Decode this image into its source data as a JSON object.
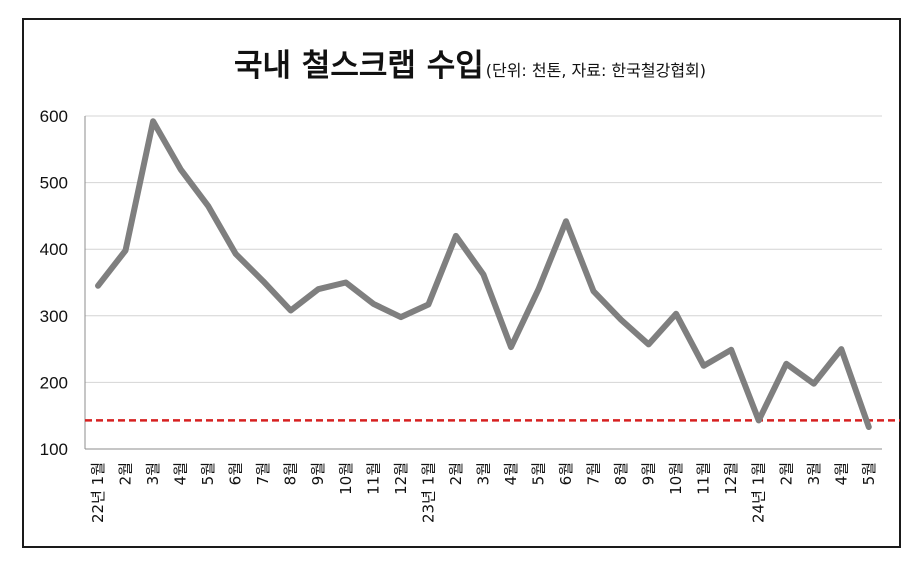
{
  "chart_data": {
    "type": "line",
    "title": "국내 철스크랩 수입",
    "subtitle": "(단위: 천톤, 자료: 한국철강협회)",
    "x": [
      "22년 1월",
      "2월",
      "3월",
      "4월",
      "5월",
      "6월",
      "7월",
      "8월",
      "9월",
      "10월",
      "11월",
      "12월",
      "23년 1월",
      "2월",
      "3월",
      "4월",
      "5월",
      "6월",
      "7월",
      "8월",
      "9월",
      "10월",
      "11월",
      "12월",
      "24년 1월",
      "2월",
      "3월",
      "4월",
      "5월"
    ],
    "series": [
      {
        "values": [
          345,
          398,
          592,
          520,
          465,
          393,
          352,
          308,
          340,
          350,
          318,
          298,
          317,
          420,
          362,
          253,
          340,
          442,
          337,
          294,
          257,
          303,
          225,
          249,
          143,
          228,
          198,
          250,
          133
        ]
      }
    ],
    "reference_line": 143,
    "ylim": [
      100,
      600
    ],
    "yticks": [
      100,
      200,
      300,
      400,
      500,
      600
    ],
    "grid": true,
    "colors": {
      "line": "#7f7f7f",
      "reference": "#d62020",
      "grid": "#d4d4d4"
    }
  }
}
